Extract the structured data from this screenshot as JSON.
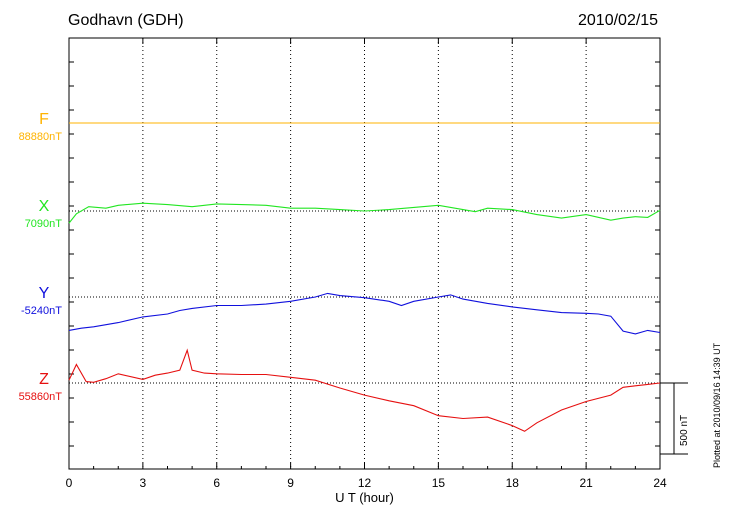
{
  "header": {
    "station": "Godhavn (GDH)",
    "date": "2010/02/15"
  },
  "footer": {
    "plotted": "Plotted at 2010/09/16 14:39 UT",
    "scale_label": "500 nT"
  },
  "colors": {
    "F": "#ffb300",
    "X": "#22e622",
    "Y": "#1010dd",
    "Z": "#e61010"
  },
  "chart_data": {
    "type": "line",
    "title": "Godhavn (GDH) 2010/02/15",
    "xlabel": "U T (hour)",
    "ylabel": "",
    "xlim": [
      0,
      24
    ],
    "xticks": [
      0,
      3,
      6,
      9,
      12,
      15,
      18,
      21,
      24
    ],
    "scale_bar_nT": 500,
    "grid": true,
    "channels": [
      {
        "name": "F",
        "baseline_label": "88880nT",
        "baseline": 88880,
        "x": [
          0,
          24
        ],
        "values": [
          88880,
          88880
        ]
      },
      {
        "name": "X",
        "baseline_label": "7090nT",
        "baseline": 7090,
        "x": [
          0,
          0.3,
          0.8,
          1.5,
          2,
          3,
          4,
          5,
          6,
          7,
          8,
          9,
          10,
          11,
          12,
          13,
          14,
          15,
          16,
          16.5,
          17,
          18,
          19,
          20,
          21,
          22,
          22.5,
          23,
          23.5,
          24
        ],
        "values": [
          7005,
          7070,
          7120,
          7110,
          7130,
          7145,
          7135,
          7120,
          7140,
          7135,
          7130,
          7110,
          7110,
          7100,
          7090,
          7100,
          7115,
          7130,
          7100,
          7085,
          7110,
          7100,
          7065,
          7040,
          7065,
          7025,
          7040,
          7050,
          7045,
          7095
        ]
      },
      {
        "name": "Y",
        "baseline_label": "-5240nT",
        "baseline": -5240,
        "x": [
          0,
          0.5,
          1,
          2,
          3,
          4,
          4.5,
          5,
          6,
          7,
          8,
          9,
          10,
          10.5,
          11,
          12,
          13,
          13.5,
          14,
          15,
          15.5,
          16,
          17,
          18,
          19,
          20,
          21,
          21.5,
          22,
          22.5,
          23,
          23.5,
          24
        ],
        "values": [
          -5475,
          -5460,
          -5450,
          -5420,
          -5380,
          -5360,
          -5335,
          -5320,
          -5300,
          -5300,
          -5290,
          -5270,
          -5240,
          -5215,
          -5230,
          -5245,
          -5270,
          -5300,
          -5270,
          -5240,
          -5225,
          -5255,
          -5285,
          -5310,
          -5330,
          -5350,
          -5355,
          -5360,
          -5375,
          -5480,
          -5500,
          -5475,
          -5490
        ]
      },
      {
        "name": "Z",
        "baseline_label": "55860nT",
        "baseline": 55860,
        "x": [
          0,
          0.3,
          0.7,
          1,
          1.5,
          2,
          3,
          3.5,
          4,
          4.5,
          4.8,
          5,
          5.5,
          6,
          7,
          8,
          9,
          10,
          11,
          12,
          13,
          14,
          15,
          16,
          17,
          18,
          18.5,
          19,
          20,
          21,
          22,
          22.5,
          23,
          23.5,
          24
        ],
        "values": [
          55880,
          55990,
          55870,
          55865,
          55890,
          55925,
          55885,
          55915,
          55930,
          55950,
          56090,
          55950,
          55930,
          55925,
          55920,
          55920,
          55900,
          55880,
          55825,
          55775,
          55735,
          55700,
          55630,
          55610,
          55620,
          55560,
          55520,
          55580,
          55670,
          55730,
          55775,
          55830,
          55840,
          55850,
          55860
        ]
      }
    ]
  }
}
